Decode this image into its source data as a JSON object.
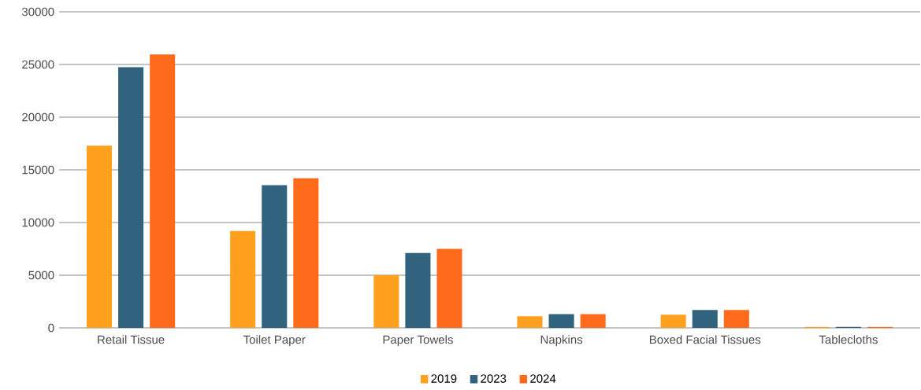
{
  "chart_data": {
    "type": "bar",
    "categories": [
      "Retail Tissue",
      "Toilet Paper",
      "Paper Towels",
      "Napkins",
      "Boxed Facial Tissues",
      "Tablecloths"
    ],
    "series": [
      {
        "name": "2019",
        "color": "#ffa01f",
        "values": [
          17300,
          9200,
          5000,
          1100,
          1250,
          100
        ]
      },
      {
        "name": "2023",
        "color": "#31627e",
        "values": [
          24750,
          13550,
          7100,
          1300,
          1700,
          100
        ]
      },
      {
        "name": "2024",
        "color": "#ff6b1a",
        "values": [
          25950,
          14200,
          7500,
          1300,
          1700,
          100
        ]
      }
    ],
    "ylim": [
      0,
      30000
    ],
    "yticks": [
      0,
      5000,
      10000,
      15000,
      20000,
      25000,
      30000
    ],
    "grid": "y",
    "legend": "bottom"
  }
}
